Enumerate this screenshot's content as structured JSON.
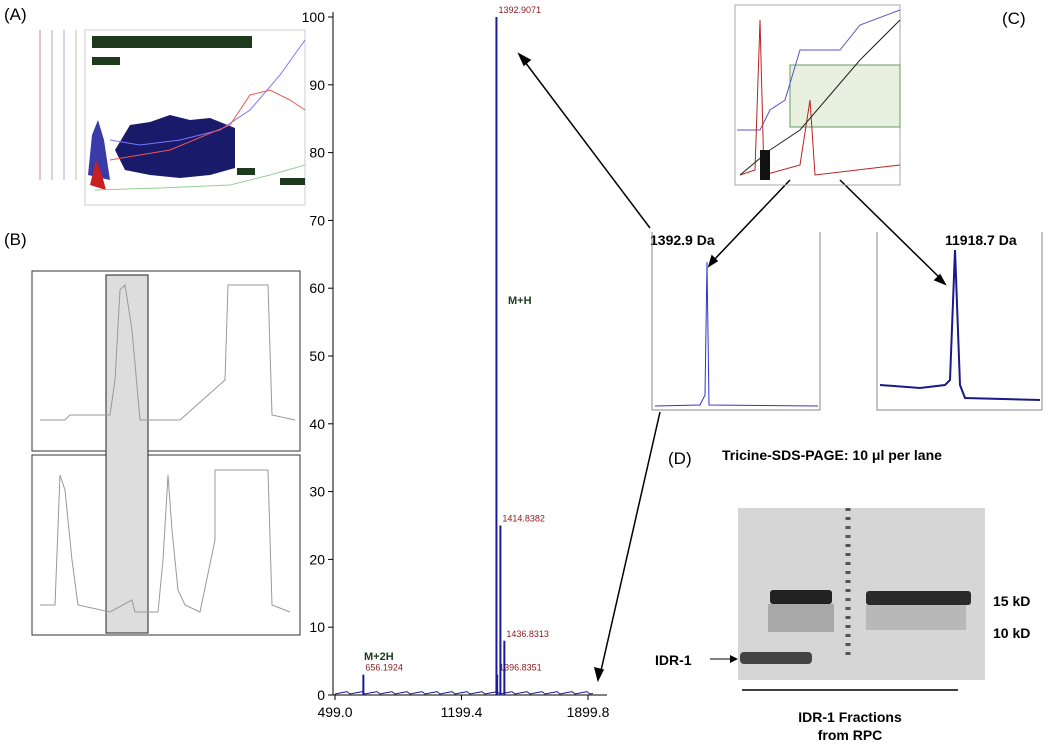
{
  "panels": {
    "a": "(A)",
    "b": "(B)",
    "c": "(C)",
    "d": "(D)"
  },
  "chart_data": {
    "type": "spectrum",
    "x": [
      656.1924,
      1392.9071,
      1396.8351,
      1414.8382,
      1436.8313
    ],
    "values": [
      3,
      100,
      3,
      25,
      8
    ],
    "color": "#1a1a9a",
    "label_color": "#8b1a1a",
    "xlim": [
      488,
      2005
    ],
    "xticks": [
      {
        "value": 499,
        "label": "499.0"
      },
      1199.4,
      1899.8
    ],
    "ylim": [
      0,
      100
    ],
    "yticks": [
      0,
      10,
      20,
      30,
      40,
      50,
      60,
      70,
      80,
      90,
      100
    ],
    "annotations": [
      "M+H",
      "M+2H"
    ]
  },
  "panel_c": {
    "spectrum_left": "1392.9 Da",
    "spectrum_right": "11918.7 Da"
  },
  "panel_d": {
    "title": "Tricine-SDS-PAGE: 10 μl per lane",
    "marker_15": "15 kD",
    "marker_10": "10 kD",
    "band": "IDR-1",
    "caption": [
      "IDR-1 Fractions",
      "from RPC"
    ]
  }
}
